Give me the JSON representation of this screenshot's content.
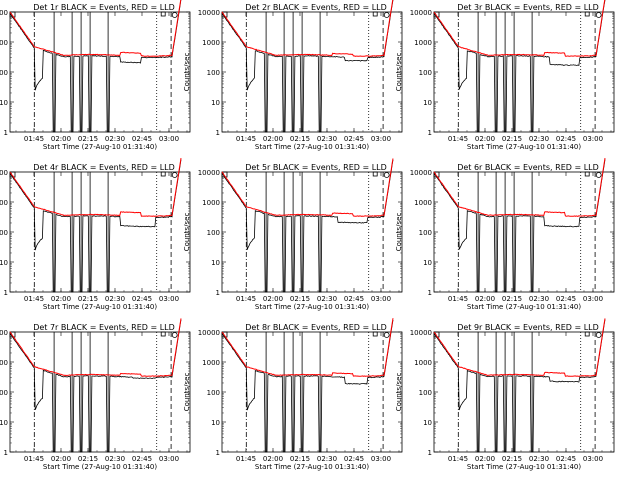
{
  "chart_data": {
    "type": "line",
    "y_axis": {
      "label": "Counts/sec",
      "scale": "log",
      "ylim": [
        1,
        10000
      ],
      "tick_labels": [
        "1",
        "10",
        "100",
        "1000",
        "10000"
      ]
    },
    "x_axis": {
      "xlabel": "Start Time (27-Aug-10 01:31:40)",
      "xlim_min_after_start": [
        0,
        100
      ],
      "tick_labels": [
        "01:45",
        "02:00",
        "02:15",
        "02:30",
        "02:45",
        "03:00"
      ],
      "tick_positions_min": [
        13.33,
        28.33,
        43.33,
        58.33,
        73.33,
        88.33
      ]
    },
    "series_names": [
      "Events",
      "LLD"
    ],
    "series_colors": {
      "Events": "#000000",
      "LLD": "#ff0000"
    },
    "markers": {
      "dashdot_lines_min": [
        13.5
      ],
      "solid_lines_min": [
        24.5,
        34.5,
        39.5,
        44.5,
        54.5
      ],
      "dotted_lines_min": [
        81.5
      ],
      "dashed_lines_min": [
        89.5
      ],
      "corner_symbols": [
        "square",
        "circle"
      ]
    },
    "panels": [
      {
        "title": "Det 1r BLACK = Events, RED = LLD",
        "anomaly": {
          "x_min": [
            61.5,
            72.5
          ],
          "drop": 0.6
        },
        "llm_bump": {
          "x_min": [
            61.5,
            72.5
          ],
          "rise": 1.25
        }
      },
      {
        "title": "Det 2r BLACK = Events, RED = LLD",
        "anomaly": {
          "x_min": [
            68.5,
            80.5
          ],
          "drop": 0.7
        },
        "llm_bump": {
          "x_min": [
            61.5,
            72.5
          ],
          "rise": 1.15
        }
      },
      {
        "title": "Det 3r BLACK = Events, RED = LLD",
        "anomaly": {
          "x_min": [
            64.5,
            80.5
          ],
          "drop": 0.5
        },
        "llm_bump": {
          "x_min": [
            61.5,
            72.5
          ],
          "rise": 1.25
        }
      },
      {
        "title": "Det 4r BLACK = Events, RED = LLD",
        "anomaly": {
          "x_min": [
            61.5,
            80.5
          ],
          "drop": 0.45
        },
        "llm_bump": {
          "x_min": [
            61.5,
            72.5
          ],
          "rise": 1.3
        }
      },
      {
        "title": "Det 5r BLACK = Events, RED = LLD",
        "anomaly": {
          "x_min": [
            64.5,
            80.5
          ],
          "drop": 0.6
        },
        "llm_bump": {
          "x_min": [
            61.5,
            72.5
          ],
          "rise": 1.2
        }
      },
      {
        "title": "Det 6r BLACK = Events, RED = LLD",
        "anomaly": {
          "x_min": [
            61.5,
            80.5
          ],
          "drop": 0.45
        },
        "llm_bump": {
          "x_min": [
            61.5,
            72.5
          ],
          "rise": 1.3
        }
      },
      {
        "title": "Det 7r BLACK = Events, RED = LLD",
        "anomaly": {
          "x_min": [
            68.5,
            80.5
          ],
          "drop": 0.85
        },
        "llm_bump": {
          "x_min": [
            61.5,
            72.5
          ],
          "rise": 1.15
        }
      },
      {
        "title": "Det 8r BLACK = Events, RED = LLD",
        "anomaly": {
          "x_min": [
            68.5,
            80.5
          ],
          "drop": 0.55
        },
        "llm_bump": {
          "x_min": [
            61.5,
            72.5
          ],
          "rise": 1.2
        }
      },
      {
        "title": "Det 9r BLACK = Events, RED = LLD",
        "anomaly": {
          "x_min": [
            64.5,
            80.5
          ],
          "drop": 0.65
        },
        "llm_bump": {
          "x_min": [
            61.5,
            72.5
          ],
          "rise": 1.25
        }
      }
    ]
  }
}
